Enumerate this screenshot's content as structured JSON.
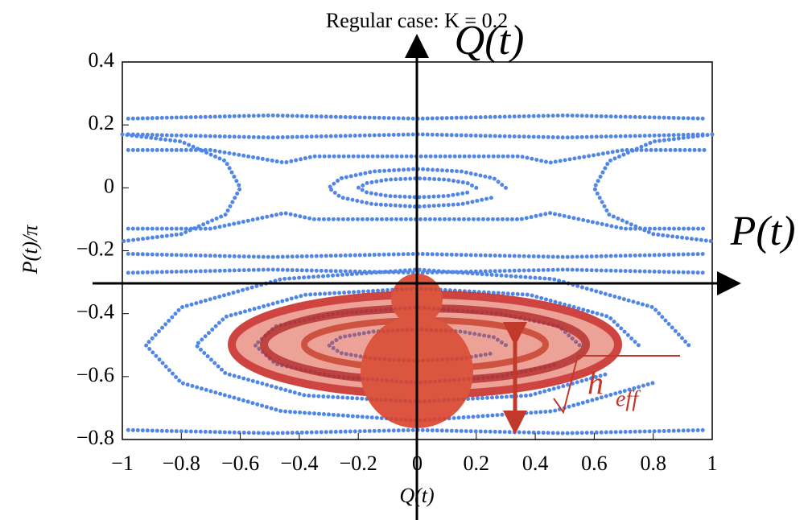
{
  "chart_data": {
    "type": "scatter",
    "title": "Regular case: K = 0.2",
    "x_label": "Q(t)",
    "y_label": "P(t)/π",
    "overlay_labels": {
      "q": "Q(t)",
      "p": "P(t)",
      "h": "h",
      "h_sub": "eff"
    },
    "color": "#4f86e8",
    "xlim": [
      -1,
      1
    ],
    "ylim": [
      -0.8,
      0.4
    ],
    "xticks": [
      {
        "value": -1,
        "label": "−1"
      },
      {
        "value": -0.8,
        "label": "−0.8"
      },
      {
        "value": -0.6,
        "label": "−0.6"
      },
      {
        "value": -0.4,
        "label": "−0.4"
      },
      {
        "value": -0.2,
        "label": "−0.2"
      },
      0,
      0.2,
      0.4,
      0.6,
      0.8,
      1
    ],
    "yticks": [
      {
        "value": -0.8,
        "label": "−0.8"
      },
      {
        "value": -0.6,
        "label": "−0.6"
      },
      {
        "value": -0.4,
        "label": "−0.4"
      },
      {
        "value": -0.2,
        "label": "−0.2"
      },
      0,
      0.2,
      0.4
    ],
    "series": [
      {
        "x": [
          0.2,
          0.17,
          0.1,
          0,
          -0.1,
          -0.17,
          -0.2,
          -0.17,
          -0.1,
          0,
          0.1,
          0.17
        ],
        "values": [
          0,
          0.015,
          0.026,
          0.03,
          0.026,
          0.015,
          0,
          -0.015,
          -0.026,
          -0.03,
          -0.026,
          -0.015
        ]
      },
      {
        "x": [
          0.3,
          0.26,
          0.15,
          0,
          -0.15,
          -0.26,
          -0.3,
          -0.26,
          -0.15,
          0,
          0.15,
          0.26
        ],
        "values": [
          0,
          0.03,
          0.052,
          0.06,
          0.052,
          0.03,
          0,
          -0.03,
          -0.052,
          -0.06,
          -0.052,
          -0.03
        ]
      },
      {
        "x": [
          0.3,
          0.26,
          0.15,
          0,
          -0.15,
          -0.26,
          -0.3,
          -0.26,
          -0.15,
          0,
          0.15,
          0.26
        ],
        "values": [
          -0.5,
          -0.475,
          -0.457,
          -0.45,
          -0.457,
          -0.475,
          -0.5,
          -0.525,
          -0.543,
          -0.55,
          -0.543,
          -0.525
        ]
      },
      {
        "x": [
          0.55,
          0.48,
          0.28,
          0,
          -0.28,
          -0.48,
          -0.55,
          -0.48,
          -0.28,
          0,
          0.28,
          0.48
        ],
        "values": [
          -0.5,
          -0.44,
          -0.4,
          -0.38,
          -0.4,
          -0.44,
          -0.5,
          -0.56,
          -0.6,
          -0.62,
          -0.6,
          -0.56
        ]
      },
      {
        "x": [
          0.75,
          0.65,
          0.38,
          0,
          -0.38,
          -0.65,
          -0.75,
          -0.65,
          -0.38,
          0,
          0.38,
          0.65
        ],
        "values": [
          -0.5,
          -0.41,
          -0.34,
          -0.32,
          -0.34,
          -0.41,
          -0.5,
          -0.59,
          -0.66,
          -0.68,
          -0.66,
          -0.59
        ]
      },
      {
        "x": [
          0.92,
          0.8,
          0.46,
          0,
          -0.46,
          -0.8,
          -0.92,
          -0.8,
          -0.46,
          0,
          0.46,
          0.8
        ],
        "values": [
          -0.5,
          -0.38,
          -0.29,
          -0.26,
          -0.29,
          -0.38,
          -0.5,
          -0.62,
          -0.71,
          -0.74,
          -0.71,
          -0.62
        ]
      },
      {
        "x": [
          -0.98,
          -0.5,
          0,
          0.5,
          0.98
        ],
        "values": [
          0.22,
          0.23,
          0.22,
          0.23,
          0.22
        ]
      },
      {
        "x": [
          -0.98,
          -0.5,
          0,
          0.5,
          0.98
        ],
        "values": [
          0.17,
          0.16,
          0.17,
          0.16,
          0.17
        ]
      },
      {
        "x": [
          -0.98,
          -0.7,
          -0.45,
          -0.35,
          0,
          0.35,
          0.45,
          0.7,
          0.98
        ],
        "values": [
          0.12,
          0.12,
          0.08,
          0.1,
          0.1,
          0.1,
          0.08,
          0.12,
          0.12
        ]
      },
      {
        "x": [
          -0.98,
          -0.7,
          -0.45,
          -0.35,
          0,
          0.35,
          0.45,
          0.7,
          0.98
        ],
        "values": [
          -0.13,
          -0.13,
          -0.08,
          -0.1,
          -0.1,
          -0.1,
          -0.08,
          -0.13,
          -0.13
        ]
      },
      {
        "x": [
          -0.98,
          -0.5,
          0,
          0.5,
          0.98
        ],
        "values": [
          -0.21,
          -0.22,
          -0.21,
          -0.22,
          -0.21
        ]
      },
      {
        "x": [
          -0.98,
          -0.5,
          0,
          0.5,
          0.98
        ],
        "values": [
          -0.27,
          -0.26,
          -0.27,
          -0.26,
          -0.27
        ]
      },
      {
        "x": [
          -0.98,
          -0.5,
          0,
          0.5,
          0.98
        ],
        "values": [
          -0.77,
          -0.78,
          -0.77,
          -0.78,
          -0.77
        ]
      },
      {
        "x": [
          -1,
          -0.8,
          -0.65,
          -0.6,
          -0.65,
          -0.8,
          -1
        ],
        "values": [
          0.17,
          0.147,
          0.085,
          0,
          -0.085,
          -0.147,
          -0.17
        ]
      },
      {
        "x": [
          1,
          0.8,
          0.65,
          0.6,
          0.65,
          0.8,
          1
        ],
        "values": [
          0.17,
          0.147,
          0.085,
          0,
          -0.085,
          -0.147,
          -0.17
        ]
      }
    ]
  }
}
